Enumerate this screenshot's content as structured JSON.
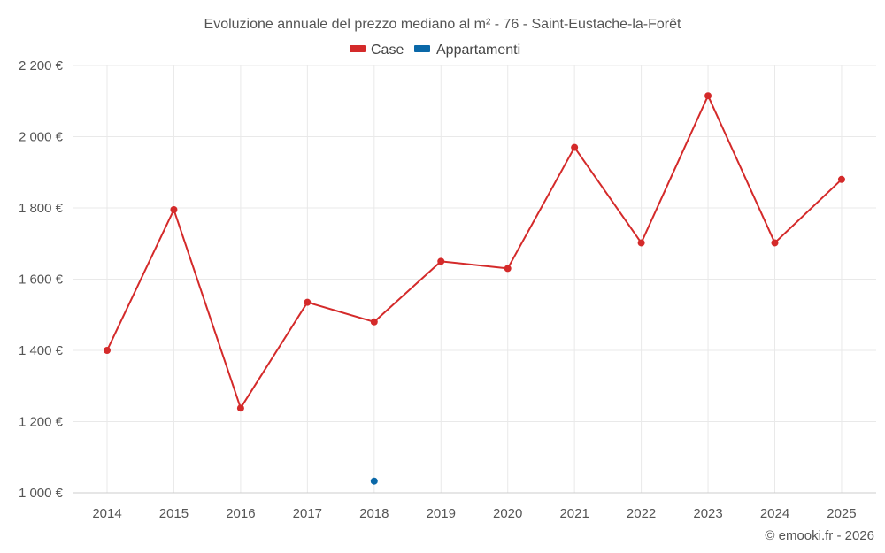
{
  "chart_data": {
    "type": "line",
    "title": "Evoluzione annuale del prezzo mediano al m² - 76 - Saint-Eustache-la-Forêt",
    "xlabel": "",
    "ylabel": "",
    "categories": [
      "2014",
      "2015",
      "2016",
      "2017",
      "2018",
      "2019",
      "2020",
      "2021",
      "2022",
      "2023",
      "2024",
      "2025"
    ],
    "ylim": [
      1000,
      2200
    ],
    "yticks": [
      1000,
      1200,
      1400,
      1600,
      1800,
      2000,
      2200
    ],
    "ytick_labels": [
      "1 000 €",
      "1 200 €",
      "1 400 €",
      "1 600 €",
      "1 800 €",
      "2 000 €",
      "2 200 €"
    ],
    "grid": true,
    "legend_position": "top-center",
    "series": [
      {
        "name": "Case",
        "color": "#d42a2a",
        "values": [
          1400,
          1795,
          1238,
          1535,
          1480,
          1650,
          1630,
          1970,
          1702,
          2115,
          1702,
          1880
        ]
      },
      {
        "name": "Appartamenti",
        "color": "#0a68a8",
        "values": [
          null,
          null,
          null,
          null,
          1033,
          null,
          null,
          null,
          null,
          null,
          null,
          null
        ]
      }
    ]
  },
  "credit": "© emooki.fr - 2026"
}
